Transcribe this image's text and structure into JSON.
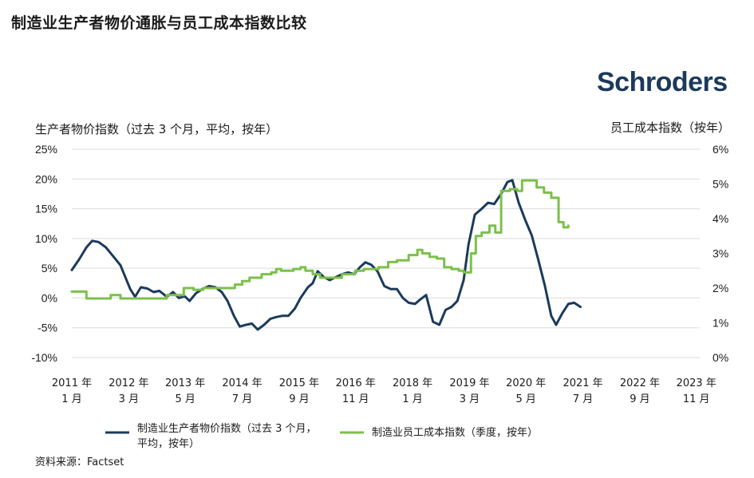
{
  "title": "制造业生产者物价通胀与员工成本指数比较",
  "logo_text": "Schroders",
  "source": "资料来源：Factset",
  "colors": {
    "ppi": "#1b3a5c",
    "eci": "#7cc04b"
  },
  "chart_data": {
    "type": "line",
    "left_axis_label": "生产者物价指数（过去 3 个月，平均，按年）",
    "right_axis_label": "员工成本指数（按年）",
    "left_ticks": [
      "25%",
      "20%",
      "15%",
      "10%",
      "5%",
      "0%",
      "-5%",
      "-10%"
    ],
    "right_ticks": [
      "6%",
      "5%",
      "4%",
      "3%",
      "2%",
      "1%",
      "0%"
    ],
    "ylim_left": [
      -10,
      25
    ],
    "ylim_right": [
      0,
      6
    ],
    "xlim": [
      2011.0,
      2023.9
    ],
    "x_tick_labels": [
      {
        "x": 2011.0,
        "year": "2011 年",
        "month": "1 月"
      },
      {
        "x": 2012.17,
        "year": "2012 年",
        "month": "3 月"
      },
      {
        "x": 2013.33,
        "year": "2013 年",
        "month": "5 月"
      },
      {
        "x": 2014.5,
        "year": "2014 年",
        "month": "7 月"
      },
      {
        "x": 2015.67,
        "year": "2015 年",
        "month": "9 月"
      },
      {
        "x": 2016.83,
        "year": "2016 年",
        "month": "11 月"
      },
      {
        "x": 2018.0,
        "year": "2018 年",
        "month": "1 月"
      },
      {
        "x": 2019.17,
        "year": "2019 年",
        "month": "3 月"
      },
      {
        "x": 2020.33,
        "year": "2020 年",
        "month": "5 月"
      },
      {
        "x": 2021.5,
        "year": "2021 年",
        "month": "7 月"
      },
      {
        "x": 2022.67,
        "year": "2022 年",
        "month": "9 月"
      },
      {
        "x": 2023.83,
        "year": "2023 年",
        "month": "11 月"
      }
    ],
    "series": [
      {
        "name": "制造业生产者物价指数（过去 3 个月，平均，按年）",
        "axis": "left",
        "points": [
          [
            2011.0,
            4.7
          ],
          [
            2011.15,
            6.5
          ],
          [
            2011.3,
            8.5
          ],
          [
            2011.42,
            9.6
          ],
          [
            2011.55,
            9.4
          ],
          [
            2011.7,
            8.5
          ],
          [
            2011.85,
            7.0
          ],
          [
            2012.0,
            5.5
          ],
          [
            2012.1,
            3.5
          ],
          [
            2012.2,
            1.5
          ],
          [
            2012.3,
            0.2
          ],
          [
            2012.42,
            1.8
          ],
          [
            2012.55,
            1.6
          ],
          [
            2012.68,
            1.0
          ],
          [
            2012.8,
            1.2
          ],
          [
            2012.95,
            0.2
          ],
          [
            2013.08,
            1.0
          ],
          [
            2013.2,
            0.0
          ],
          [
            2013.32,
            0.3
          ],
          [
            2013.42,
            -0.5
          ],
          [
            2013.55,
            0.8
          ],
          [
            2013.68,
            1.5
          ],
          [
            2013.82,
            2.0
          ],
          [
            2013.95,
            1.8
          ],
          [
            2014.08,
            1.0
          ],
          [
            2014.2,
            -0.5
          ],
          [
            2014.33,
            -3.0
          ],
          [
            2014.45,
            -4.8
          ],
          [
            2014.58,
            -4.5
          ],
          [
            2014.7,
            -4.3
          ],
          [
            2014.82,
            -5.3
          ],
          [
            2014.95,
            -4.5
          ],
          [
            2015.08,
            -3.5
          ],
          [
            2015.2,
            -3.2
          ],
          [
            2015.32,
            -3.0
          ],
          [
            2015.45,
            -3.0
          ],
          [
            2015.58,
            -1.8
          ],
          [
            2015.7,
            0.0
          ],
          [
            2015.85,
            1.8
          ],
          [
            2015.95,
            2.5
          ],
          [
            2016.05,
            4.5
          ],
          [
            2016.18,
            3.5
          ],
          [
            2016.3,
            3.0
          ],
          [
            2016.42,
            3.5
          ],
          [
            2016.55,
            4.0
          ],
          [
            2016.68,
            4.3
          ],
          [
            2016.8,
            4.0
          ],
          [
            2016.92,
            5.2
          ],
          [
            2017.03,
            6.0
          ],
          [
            2017.15,
            5.6
          ],
          [
            2017.28,
            4.5
          ],
          [
            2017.42,
            2.0
          ],
          [
            2017.55,
            1.5
          ],
          [
            2017.68,
            1.5
          ],
          [
            2017.8,
            0.0
          ],
          [
            2017.92,
            -0.8
          ],
          [
            2018.05,
            -1.0
          ],
          [
            2018.15,
            -0.3
          ],
          [
            2018.28,
            0.5
          ],
          [
            2018.42,
            -4.0
          ],
          [
            2018.55,
            -4.5
          ],
          [
            2018.68,
            -2.0
          ],
          [
            2018.8,
            -1.5
          ],
          [
            2018.92,
            -0.5
          ],
          [
            2019.05,
            3.0
          ],
          [
            2019.15,
            9.0
          ],
          [
            2019.28,
            14.0
          ],
          [
            2019.42,
            15.0
          ],
          [
            2019.55,
            16.0
          ],
          [
            2019.68,
            15.8
          ],
          [
            2019.82,
            17.5
          ],
          [
            2019.95,
            19.5
          ],
          [
            2020.05,
            19.8
          ],
          [
            2020.18,
            16.0
          ],
          [
            2020.32,
            13.0
          ],
          [
            2020.45,
            10.5
          ],
          [
            2020.58,
            6.5
          ],
          [
            2020.72,
            2.0
          ],
          [
            2020.85,
            -3.0
          ],
          [
            2020.95,
            -4.5
          ],
          [
            2021.08,
            -2.5
          ],
          [
            2021.2,
            -1.0
          ],
          [
            2021.32,
            -0.8
          ],
          [
            2021.45,
            -1.5
          ]
        ]
      },
      {
        "name": "制造业员工成本指数（季度，按年）",
        "axis": "right",
        "points": [
          [
            2011.0,
            1.9
          ],
          [
            2011.25,
            1.9
          ],
          [
            2011.3,
            1.7
          ],
          [
            2011.55,
            1.7
          ],
          [
            2011.7,
            1.7
          ],
          [
            2011.8,
            1.8
          ],
          [
            2012.0,
            1.7
          ],
          [
            2012.5,
            1.7
          ],
          [
            2012.8,
            1.7
          ],
          [
            2012.95,
            1.8
          ],
          [
            2013.15,
            1.8
          ],
          [
            2013.3,
            2.0
          ],
          [
            2013.5,
            1.95
          ],
          [
            2013.7,
            2.0
          ],
          [
            2014.0,
            2.0
          ],
          [
            2014.2,
            2.0
          ],
          [
            2014.35,
            2.1
          ],
          [
            2014.5,
            2.2
          ],
          [
            2014.65,
            2.3
          ],
          [
            2014.9,
            2.4
          ],
          [
            2015.1,
            2.45
          ],
          [
            2015.2,
            2.55
          ],
          [
            2015.3,
            2.5
          ],
          [
            2015.4,
            2.5
          ],
          [
            2015.55,
            2.55
          ],
          [
            2015.7,
            2.6
          ],
          [
            2015.8,
            2.5
          ],
          [
            2015.95,
            2.4
          ],
          [
            2016.1,
            2.3
          ],
          [
            2016.3,
            2.3
          ],
          [
            2016.55,
            2.4
          ],
          [
            2016.7,
            2.4
          ],
          [
            2016.82,
            2.5
          ],
          [
            2017.0,
            2.55
          ],
          [
            2017.2,
            2.55
          ],
          [
            2017.3,
            2.6
          ],
          [
            2017.5,
            2.75
          ],
          [
            2017.68,
            2.8
          ],
          [
            2017.92,
            2.95
          ],
          [
            2018.1,
            3.1
          ],
          [
            2018.2,
            3.0
          ],
          [
            2018.35,
            2.9
          ],
          [
            2018.5,
            2.85
          ],
          [
            2018.65,
            2.6
          ],
          [
            2018.8,
            2.55
          ],
          [
            2018.95,
            2.5
          ],
          [
            2019.05,
            2.45
          ],
          [
            2019.2,
            3.0
          ],
          [
            2019.3,
            3.5
          ],
          [
            2019.42,
            3.6
          ],
          [
            2019.58,
            3.8
          ],
          [
            2019.7,
            3.6
          ],
          [
            2019.82,
            4.8
          ],
          [
            2020.0,
            4.85
          ],
          [
            2020.15,
            4.8
          ],
          [
            2020.25,
            5.1
          ],
          [
            2020.4,
            5.1
          ],
          [
            2020.55,
            4.9
          ],
          [
            2020.7,
            4.75
          ],
          [
            2020.85,
            4.6
          ],
          [
            2021.0,
            3.9
          ],
          [
            2021.1,
            3.75
          ],
          [
            2021.2,
            3.8
          ]
        ]
      }
    ]
  },
  "legend": [
    {
      "label_line1": "制造业生产者物价指数（过去 3 个月，",
      "label_line2": "平均，按年）"
    },
    {
      "label_line1": "制造业员工成本指数（季度，按年）",
      "label_line2": ""
    }
  ]
}
